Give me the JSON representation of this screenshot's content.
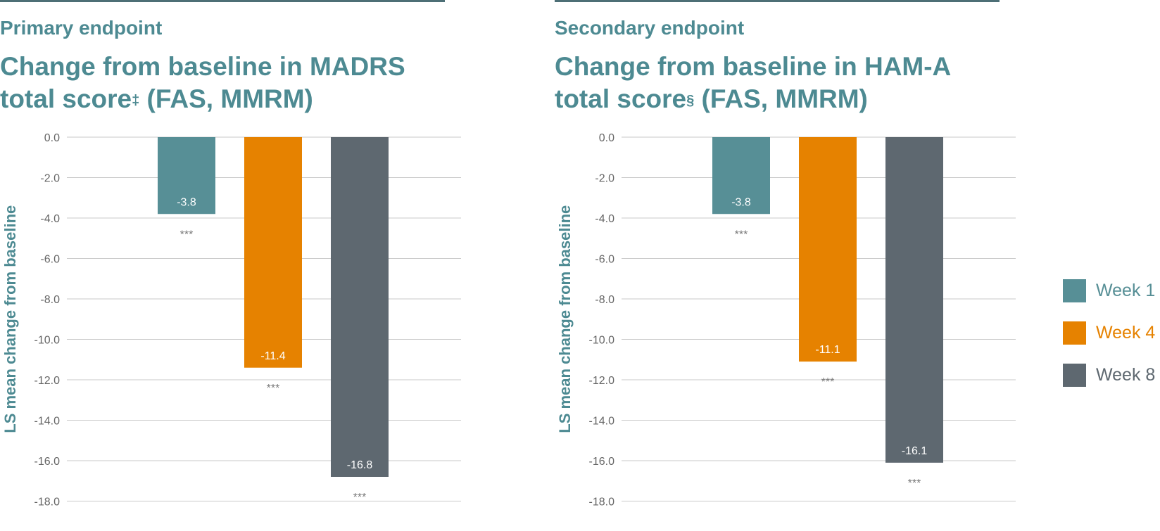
{
  "colors": {
    "week1": "#578f96",
    "week4": "#e68200",
    "week8": "#5e6870"
  },
  "legend": [
    {
      "label": "Week 1",
      "color": "#578f96"
    },
    {
      "label": "Week 4",
      "color": "#e68200"
    },
    {
      "label": "Week 8",
      "color": "#5e6870"
    }
  ],
  "chart_data": [
    {
      "type": "bar",
      "subtitle": "Primary endpoint",
      "title_line1": "Change from baseline in MADRS",
      "title_line2_pre": "total score",
      "title_mark": "‡",
      "title_line2_post": " (FAS, MMRM)",
      "ylabel": "LS mean change from baseline",
      "ylim": [
        -18,
        0
      ],
      "yticks": [
        "0.0",
        "-2.0",
        "-4.0",
        "-6.0",
        "-8.0",
        "-10.0",
        "-12.0",
        "-14.0",
        "-16.0",
        "-18.0"
      ],
      "categories": [
        "Week 1",
        "Week 4",
        "Week 8"
      ],
      "values": [
        -3.8,
        -11.4,
        -16.8
      ],
      "value_labels": [
        "-3.8",
        "-11.4",
        "-16.8"
      ],
      "significance": [
        "***",
        "***",
        "***"
      ]
    },
    {
      "type": "bar",
      "subtitle": "Secondary endpoint",
      "title_line1": "Change from baseline in HAM-A",
      "title_line2_pre": "total score",
      "title_mark": "§",
      "title_line2_post": " (FAS, MMRM)",
      "ylabel": "LS mean change from baseline",
      "ylim": [
        -18,
        0
      ],
      "yticks": [
        "0.0",
        "-2.0",
        "-4.0",
        "-6.0",
        "-8.0",
        "-10.0",
        "-12.0",
        "-14.0",
        "-16.0",
        "-18.0"
      ],
      "categories": [
        "Week 1",
        "Week 4",
        "Week 8"
      ],
      "values": [
        -3.8,
        -11.1,
        -16.1
      ],
      "value_labels": [
        "-3.8",
        "-11.1",
        "-16.1"
      ],
      "significance": [
        "***",
        "***",
        "***"
      ]
    }
  ]
}
